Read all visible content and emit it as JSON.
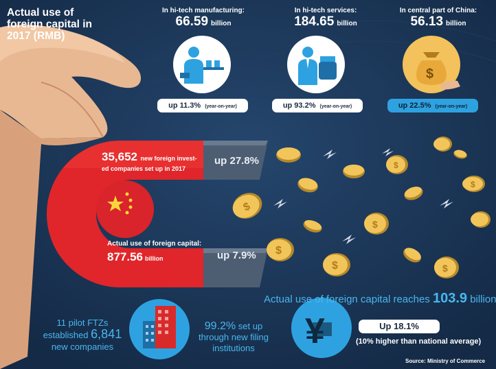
{
  "title": "Actual use of foreign capital in 2017 (RMB)",
  "stats": [
    {
      "label": "In hi-tech manufacturing:",
      "value": "66.59",
      "unit": "billion",
      "change": "up 11.3%",
      "note": "(year-on-year)",
      "icon": "factory-worker-icon"
    },
    {
      "label": "In hi-tech services:",
      "value": "184.65",
      "unit": "billion",
      "change": "up 93.2%",
      "note": "(year-on-year)",
      "icon": "businessman-money-icon"
    },
    {
      "label": "In central part of China:",
      "value": "56.13",
      "unit": "billion",
      "change": "up 22.5%",
      "note": "(year-on-year)",
      "icon": "money-bag-icon"
    }
  ],
  "magnet": {
    "companies_num": "35,652",
    "companies_text_1": "new foreign invest-",
    "companies_text_2": "ed companies set up in 2017",
    "companies_change": "up 27.8%",
    "capital_label": "Actual use of foreign capital:",
    "capital_value": "877.56",
    "capital_unit": "billion",
    "capital_change": "up 7.9%"
  },
  "reach": {
    "text": "Actual use of foreign capital reaches",
    "value": "103.9",
    "unit": "billion",
    "change": "Up 18.1%",
    "note": "(10% higher than national average)"
  },
  "ftz": {
    "line1": "11 pilot FTZs",
    "line2": "established",
    "number": "6,841",
    "line3": "new companies"
  },
  "filing": {
    "percent": "99.2%",
    "line1": "set up",
    "line2": "through new filing",
    "line3": "institutions"
  },
  "source": "Source: Ministry of Commerce",
  "colors": {
    "background": "#1b3557",
    "accent_red": "#e0262a",
    "accent_blue": "#49b7ee",
    "gold": "#f3c25c"
  }
}
